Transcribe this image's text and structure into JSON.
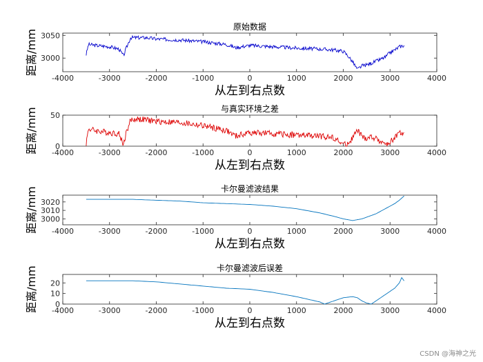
{
  "watermark": "CSDN @海神之光",
  "chart_data": [
    {
      "type": "line",
      "title": "原始数据",
      "xlabel": "从左到右点数",
      "ylabel": "距离/mm",
      "xlim": [
        -4000,
        4000
      ],
      "ylim": [
        2970,
        3055
      ],
      "xticks": [
        -4000,
        -3000,
        -2000,
        -1000,
        0,
        1000,
        2000,
        3000,
        4000
      ],
      "yticks": [
        3000,
        3050
      ],
      "color": "#0000cc",
      "noise": 4,
      "grid": false,
      "series": [
        {
          "x": [
            -3500,
            -3450,
            -3300,
            -3000,
            -2800,
            -2700,
            -2650,
            -2550,
            -2400,
            -2200,
            -2000,
            -1500,
            -1000,
            -500,
            -300,
            0,
            500,
            1000,
            1500,
            1800,
            2000,
            2100,
            2200,
            2300,
            2400,
            2500,
            2700,
            2900,
            3000,
            3100,
            3200,
            3300
          ],
          "y": [
            3008,
            3030,
            3028,
            3025,
            3020,
            3005,
            3020,
            3045,
            3045,
            3045,
            3042,
            3040,
            3036,
            3030,
            3023,
            3028,
            3025,
            3022,
            3020,
            3018,
            3015,
            3005,
            2992,
            2975,
            2983,
            2985,
            2993,
            3002,
            3012,
            3018,
            3025,
            3028
          ]
        }
      ]
    },
    {
      "type": "line",
      "title": "与真实环境之差",
      "xlabel": "从左到右点数",
      "ylabel": "距离/mm",
      "xlim": [
        -4000,
        4000
      ],
      "ylim": [
        0,
        50
      ],
      "xticks": [
        -4000,
        -3000,
        -2000,
        -1000,
        0,
        1000,
        2000,
        3000,
        4000
      ],
      "yticks": [
        0,
        50
      ],
      "color": "#dd0000",
      "noise": 5,
      "grid": false,
      "series": [
        {
          "x": [
            -3500,
            -3450,
            -3300,
            -3000,
            -2800,
            -2700,
            -2650,
            -2550,
            -2400,
            -2200,
            -2000,
            -1500,
            -1000,
            -500,
            -300,
            0,
            500,
            1000,
            1500,
            1800,
            1950,
            2050,
            2150,
            2300,
            2450,
            2600,
            2800,
            2950,
            3100,
            3200,
            3300
          ],
          "y": [
            5,
            28,
            25,
            22,
            20,
            3,
            20,
            42,
            44,
            42,
            40,
            38,
            33,
            25,
            16,
            22,
            20,
            18,
            16,
            14,
            5,
            2,
            8,
            25,
            12,
            15,
            8,
            2,
            15,
            20,
            22
          ]
        }
      ]
    },
    {
      "type": "line",
      "title": "卡尔曼滤波结果",
      "xlabel": "从左到右点数",
      "ylabel": "距离/mm",
      "xlim": [
        -4000,
        4000
      ],
      "ylim": [
        2993,
        3028
      ],
      "xticks": [
        -4000,
        -3000,
        -2000,
        -1000,
        0,
        1000,
        2000,
        3000,
        4000
      ],
      "yticks": [
        3000,
        3010,
        3020
      ],
      "color": "#0072bd",
      "noise": 0,
      "grid": false,
      "series": [
        {
          "x": [
            -3500,
            -3000,
            -2500,
            -2000,
            -1500,
            -1000,
            -500,
            0,
            500,
            1000,
            1500,
            1800,
            2000,
            2100,
            2200,
            2300,
            2400,
            2500,
            2600,
            2700,
            2800,
            2900,
            3000,
            3100,
            3200,
            3300
          ],
          "y": [
            3023,
            3023,
            3023,
            3022,
            3021,
            3019,
            3018,
            3017,
            3015,
            3012,
            3007,
            3003,
            3000,
            2999,
            2998,
            2999,
            3000,
            3002,
            3004,
            3006,
            3009,
            3012,
            3015,
            3018,
            3022,
            3027
          ]
        }
      ]
    },
    {
      "type": "line",
      "title": "卡尔曼滤波后误差",
      "xlabel": "从左到右点数",
      "ylabel": "距离/mm",
      "xlim": [
        -4000,
        4000
      ],
      "ylim": [
        0,
        28
      ],
      "xticks": [
        -4000,
        -3000,
        -2000,
        -1000,
        0,
        1000,
        2000,
        3000,
        4000
      ],
      "yticks": [
        0,
        10,
        20
      ],
      "color": "#0072bd",
      "noise": 0,
      "grid": false,
      "series": [
        {
          "x": [
            -3500,
            -3000,
            -2500,
            -2000,
            -1500,
            -1000,
            -500,
            0,
            500,
            1000,
            1300,
            1500,
            1600,
            1800,
            2000,
            2200,
            2300,
            2400,
            2500,
            2600,
            2700,
            2800,
            2900,
            3000,
            3100,
            3200,
            3250,
            3300
          ],
          "y": [
            22,
            22,
            22,
            21,
            19,
            17,
            15,
            14,
            11,
            7,
            4,
            2,
            0,
            3,
            6,
            7,
            6,
            3,
            1,
            0,
            3,
            6,
            9,
            12,
            15,
            20,
            25,
            22
          ]
        }
      ]
    }
  ]
}
